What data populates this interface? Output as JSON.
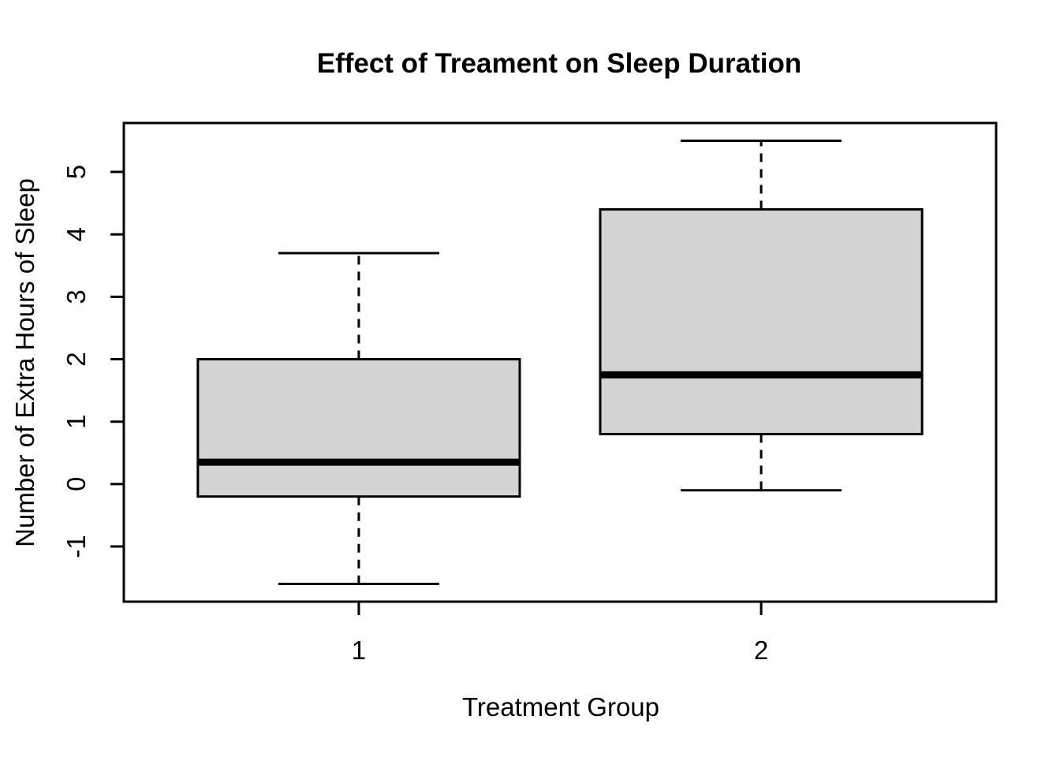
{
  "chart_data": {
    "type": "boxplot",
    "title": "Effect of Treament on Sleep Duration",
    "xlabel": "Treatment Group",
    "ylabel": "Number of Extra Hours of Sleep",
    "categories": [
      "1",
      "2"
    ],
    "groups": [
      {
        "label": "1",
        "min": -1.6,
        "q1": -0.2,
        "median": 0.35,
        "q3": 2.0,
        "max": 3.7
      },
      {
        "label": "2",
        "min": -0.1,
        "q1": 0.8,
        "median": 1.75,
        "q3": 4.4,
        "max": 5.5
      }
    ],
    "x_positions": [
      1,
      2
    ],
    "yticks": [
      -1,
      0,
      1,
      2,
      3,
      4,
      5
    ],
    "ylim": [
      -1.884,
      5.784
    ],
    "xlim": [
      0.416,
      2.584
    ],
    "grid": false,
    "legend": "none",
    "colors": {
      "box_fill": "#d3d3d3",
      "line": "#000000",
      "background": "#ffffff"
    }
  }
}
